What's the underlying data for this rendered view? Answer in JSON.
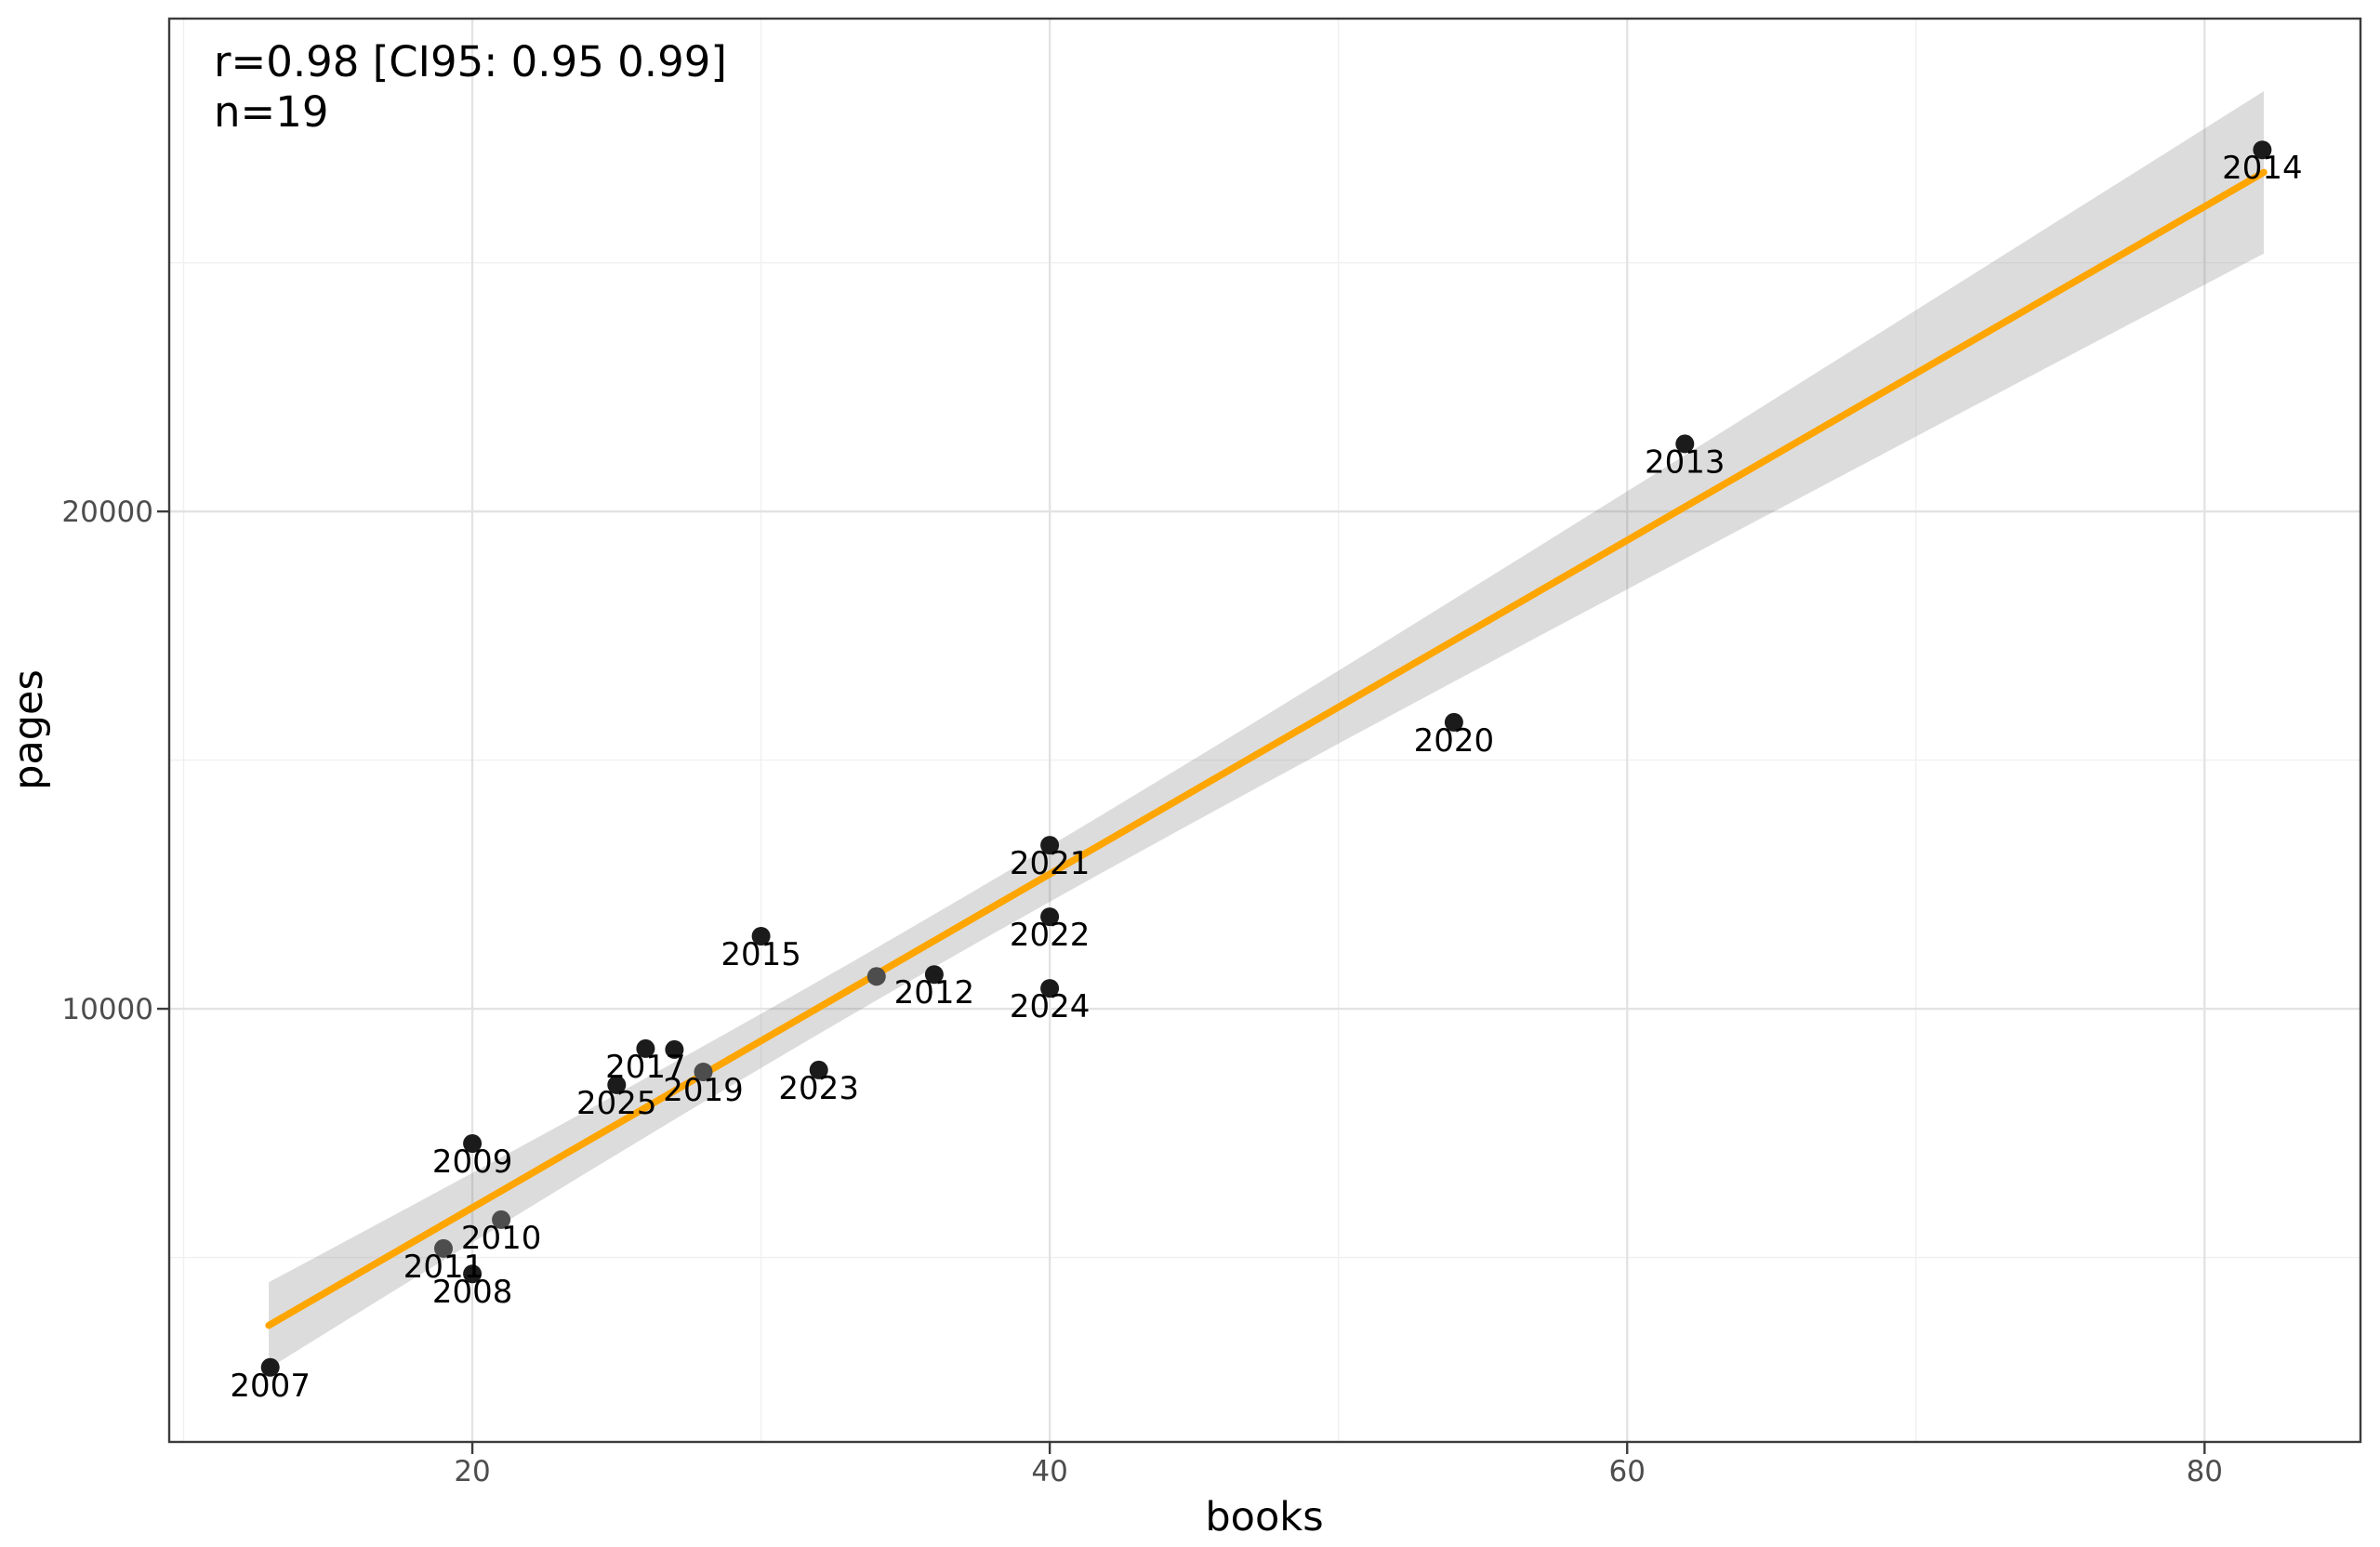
{
  "figure": {
    "description": "scatter plot of pages vs books per year with linear regression line and 95% confidence band",
    "background": "#FFFFFF"
  },
  "annotation": {
    "line1": "r=0.98 [CI95: 0.95 0.99]",
    "line2": "n=19"
  },
  "colors": {
    "regression_line": "#FFA500",
    "ci_band_rgba": "rgba(125,125,125,0.27)",
    "point": "#1B1B1B",
    "point_muted": "#4D4D4D",
    "grid_major": "#E3E3E3",
    "grid_minor": "#F0F0F0",
    "panel_border": "#3C3C3C",
    "tick_mark": "#3C3C3C",
    "tick_text": "#4D4D4D"
  },
  "chart_data": {
    "type": "scatter",
    "title": "",
    "xlabel": "books",
    "ylabel": "pages",
    "xlim": [
      9.5,
      85.4
    ],
    "ylim": [
      1290,
      29910
    ],
    "x_major_ticks": [
      20,
      40,
      60,
      80
    ],
    "x_minor_gridlines": [
      10,
      30,
      50,
      70
    ],
    "y_major_ticks": [
      10000,
      20000
    ],
    "y_minor_gridlines": [
      5000,
      15000,
      25000
    ],
    "grid": "major and minor, light gray on white panel",
    "legend_position": "none",
    "points": [
      {
        "label": "2007",
        "books": 13,
        "pages": 2790,
        "muted": false
      },
      {
        "label": "2008",
        "books": 20,
        "pages": 4670,
        "muted": false
      },
      {
        "label": "2009",
        "books": 20,
        "pages": 7290,
        "muted": false
      },
      {
        "label": "2010",
        "books": 21,
        "pages": 5760,
        "muted": true
      },
      {
        "label": "2011",
        "books": 19,
        "pages": 5180,
        "muted": true
      },
      {
        "label": "2012",
        "books": 36,
        "pages": 10690,
        "muted": false
      },
      {
        "label": "2013",
        "books": 62,
        "pages": 21360,
        "muted": false
      },
      {
        "label": "2014",
        "books": 82,
        "pages": 27270,
        "muted": false
      },
      {
        "label": "2015",
        "books": 30,
        "pages": 11460,
        "muted": false
      },
      {
        "label": "",
        "books": 27,
        "pages": 9180,
        "muted": false
      },
      {
        "label": "2017",
        "books": 26,
        "pages": 9200,
        "muted": false
      },
      {
        "label": "",
        "books": 34,
        "pages": 10650,
        "muted": true
      },
      {
        "label": "2019",
        "books": 28,
        "pages": 8730,
        "muted": true
      },
      {
        "label": "2020",
        "books": 54,
        "pages": 15760,
        "muted": false
      },
      {
        "label": "2021",
        "books": 40,
        "pages": 13290,
        "muted": false
      },
      {
        "label": "2022",
        "books": 40,
        "pages": 11850,
        "muted": false
      },
      {
        "label": "2023",
        "books": 32,
        "pages": 8770,
        "muted": false
      },
      {
        "label": "2024",
        "books": 40,
        "pages": 10410,
        "muted": false
      },
      {
        "label": "2025",
        "books": 25,
        "pages": 8470,
        "muted": false
      }
    ],
    "regression": {
      "slope": 335.5,
      "intercept": -710,
      "x_range": [
        12.95,
        82.05
      ],
      "r": 0.98,
      "ci95": [
        0.95,
        0.99
      ],
      "n": 19,
      "band_halfwidth": {
        "scale": 2300,
        "xbar": 34.2,
        "sxx": 5076
      }
    }
  }
}
